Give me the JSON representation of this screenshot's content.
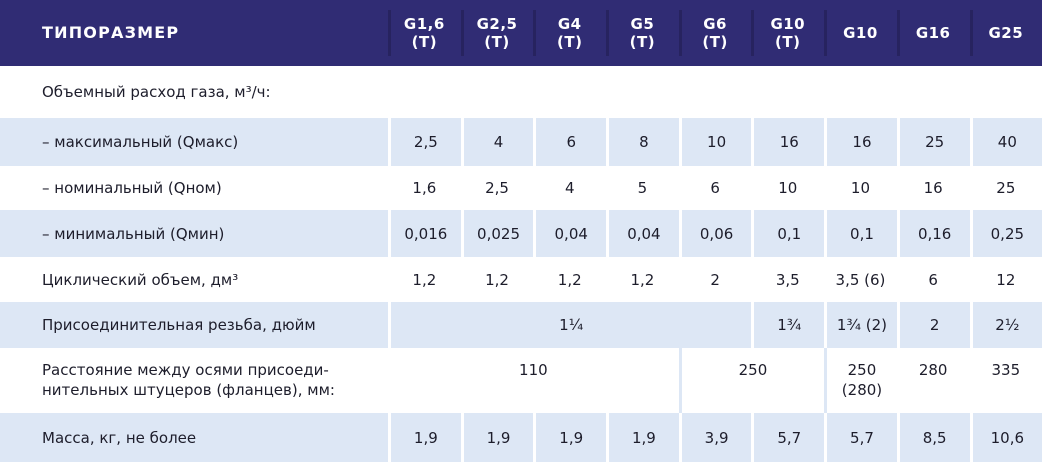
{
  "header": {
    "title": "ТИПОРАЗМЕР",
    "columns": [
      [
        "G1,6",
        "(Т)"
      ],
      [
        "G2,5",
        "(Т)"
      ],
      [
        "G4",
        "(Т)"
      ],
      [
        "G5",
        "(Т)"
      ],
      [
        "G6",
        "(Т)"
      ],
      [
        "G10",
        "(Т)"
      ],
      [
        "G10",
        ""
      ],
      [
        "G16",
        ""
      ],
      [
        "G25",
        ""
      ]
    ]
  },
  "rows": {
    "flow_title": "Объемный расход газа, м³/ч:",
    "max": {
      "label": "– максимальный (Qмакс)",
      "values": [
        "2,5",
        "4",
        "6",
        "8",
        "10",
        "16",
        "16",
        "25",
        "40"
      ]
    },
    "nom": {
      "label": "– номинальный (Qном)",
      "values": [
        "1,6",
        "2,5",
        "4",
        "5",
        "6",
        "10",
        "10",
        "16",
        "25"
      ]
    },
    "min": {
      "label": "– минимальный (Qмин)",
      "values": [
        "0,016",
        "0,025",
        "0,04",
        "0,04",
        "0,06",
        "0,1",
        "0,1",
        "0,16",
        "0,25"
      ]
    },
    "cycle": {
      "label": "Циклический объем, дм³",
      "values": [
        "1,2",
        "1,2",
        "1,2",
        "1,2",
        "2",
        "3,5",
        "3,5 (6)",
        "6",
        "12"
      ]
    },
    "thread": {
      "label": "Присоединительная резьба, дюйм",
      "values": [
        "1¼",
        "1¾",
        "1¾ (2)",
        "2",
        "2½"
      ]
    },
    "distance": {
      "label1": "Расстояние между осями присоеди-",
      "label2": "нительных штуцеров (фланцев), мм:",
      "values": [
        "110",
        "250",
        "250",
        "(280)",
        "280",
        "335"
      ]
    },
    "mass": {
      "label": "Масса, кг, не более",
      "values": [
        "1,9",
        "1,9",
        "1,9",
        "1,9",
        "3,9",
        "5,7",
        "5,7",
        "8,5",
        "10,6"
      ]
    }
  }
}
